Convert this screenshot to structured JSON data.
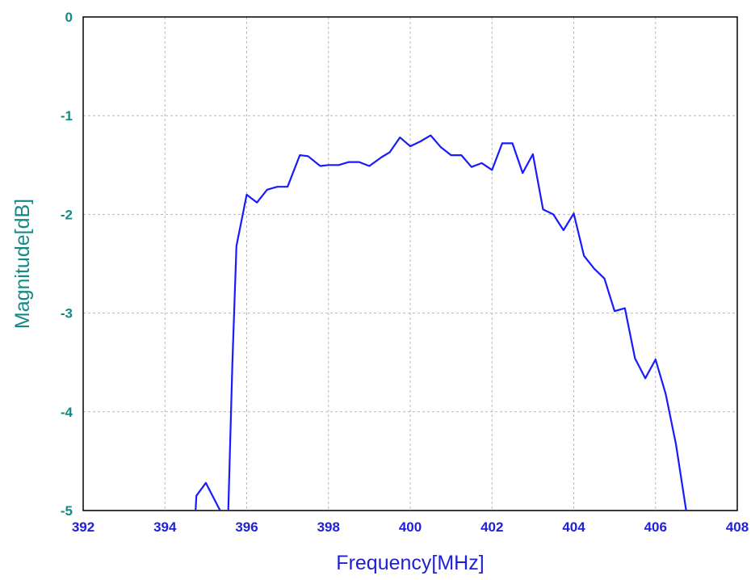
{
  "chart_data": {
    "type": "line",
    "title": "",
    "xlabel": "Frequency[MHz]",
    "ylabel": "Magnitude[dB]",
    "xlim": [
      392,
      408
    ],
    "ylim": [
      -5,
      0
    ],
    "xticks": [
      "392",
      "394",
      "396",
      "398",
      "400",
      "402",
      "404",
      "406",
      "408"
    ],
    "yticks": [
      "0",
      "-1",
      "-2",
      "-3",
      "-4",
      "-5"
    ],
    "grid": true,
    "legend": "none",
    "colors": {
      "series": "#1a1aff",
      "xaxis_text": "#1f1fd8",
      "yaxis_text": "#148a86",
      "grid": "#b8b8b8"
    },
    "series": [
      {
        "segments": [
          [
            [
              394.75,
              -5.0
            ],
            [
              394.77,
              -4.85
            ],
            [
              395.0,
              -4.72
            ],
            [
              395.35,
              -5.0
            ]
          ],
          [
            [
              395.55,
              -5.0
            ],
            [
              395.65,
              -3.5
            ],
            [
              395.75,
              -2.32
            ],
            [
              396.0,
              -1.8
            ],
            [
              396.25,
              -1.88
            ],
            [
              396.5,
              -1.75
            ],
            [
              396.75,
              -1.72
            ],
            [
              397.0,
              -1.72
            ],
            [
              397.3,
              -1.4
            ],
            [
              397.5,
              -1.41
            ],
            [
              397.8,
              -1.51
            ],
            [
              398.0,
              -1.5
            ],
            [
              398.25,
              -1.5
            ],
            [
              398.5,
              -1.47
            ],
            [
              398.75,
              -1.47
            ],
            [
              399.0,
              -1.51
            ],
            [
              399.3,
              -1.42
            ],
            [
              399.5,
              -1.37
            ],
            [
              399.75,
              -1.22
            ],
            [
              400.0,
              -1.31
            ],
            [
              400.25,
              -1.26
            ],
            [
              400.5,
              -1.2
            ],
            [
              400.75,
              -1.32
            ],
            [
              401.0,
              -1.4
            ],
            [
              401.25,
              -1.4
            ],
            [
              401.5,
              -1.52
            ],
            [
              401.75,
              -1.48
            ],
            [
              402.0,
              -1.55
            ],
            [
              402.25,
              -1.28
            ],
            [
              402.5,
              -1.28
            ],
            [
              402.75,
              -1.58
            ],
            [
              403.0,
              -1.39
            ],
            [
              403.25,
              -1.95
            ],
            [
              403.5,
              -2.0
            ],
            [
              403.75,
              -2.16
            ],
            [
              404.0,
              -1.99
            ],
            [
              404.25,
              -2.42
            ],
            [
              404.5,
              -2.55
            ],
            [
              404.75,
              -2.65
            ],
            [
              405.0,
              -2.98
            ],
            [
              405.25,
              -2.95
            ],
            [
              405.5,
              -3.46
            ],
            [
              405.75,
              -3.66
            ],
            [
              406.0,
              -3.47
            ],
            [
              406.25,
              -3.82
            ],
            [
              406.5,
              -4.33
            ],
            [
              406.75,
              -5.0
            ]
          ]
        ]
      }
    ]
  }
}
